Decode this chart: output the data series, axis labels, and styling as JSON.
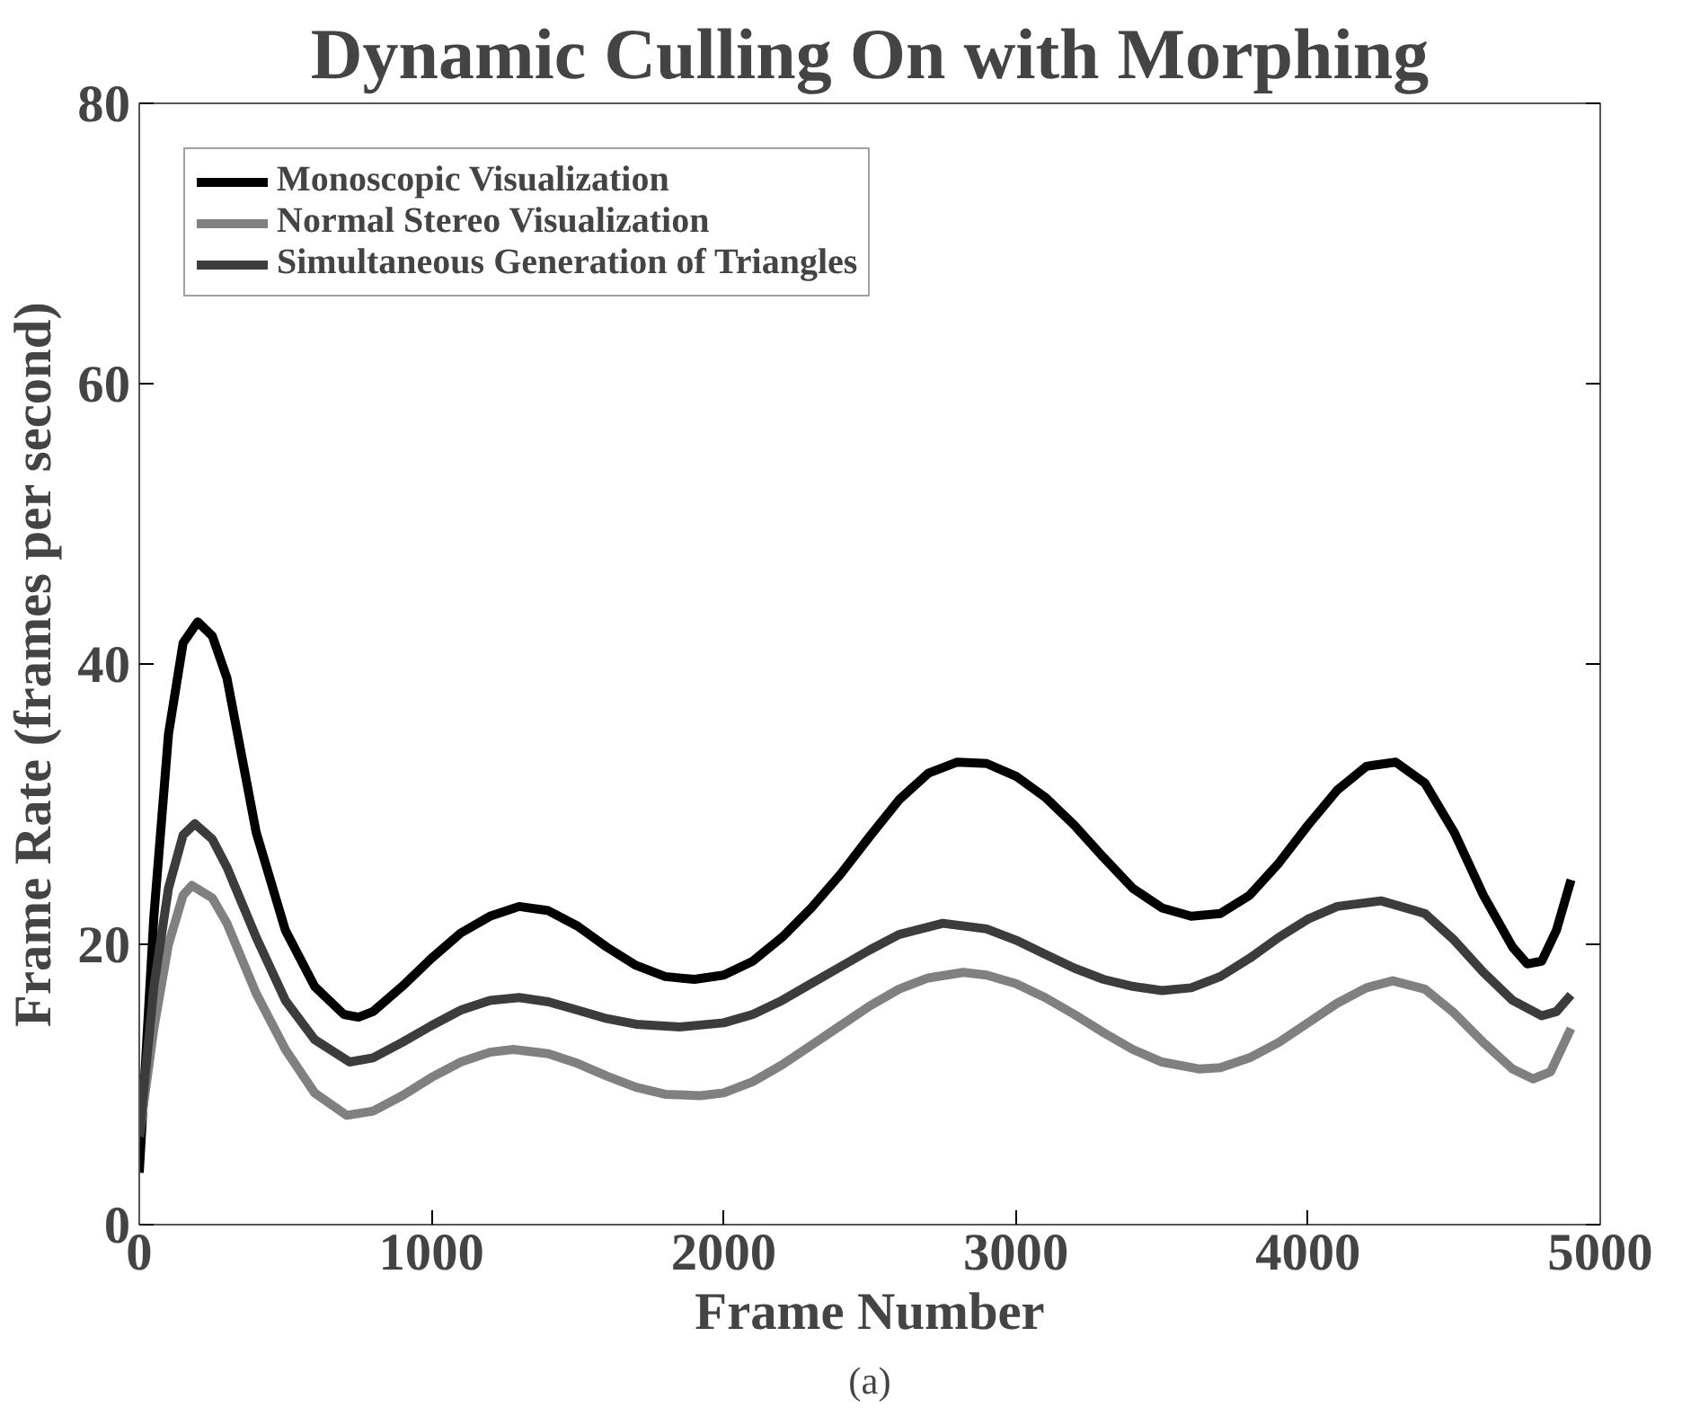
{
  "chart_data": {
    "type": "line",
    "title": "Dynamic Culling On with Morphing",
    "xlabel": "Frame Number",
    "ylabel": "Frame Rate (frames per second)",
    "annotations": [
      "(a)"
    ],
    "xlim": [
      0,
      5000
    ],
    "xticks": [
      0,
      1000,
      2000,
      3000,
      4000,
      5000
    ],
    "ylim": [
      0,
      80
    ],
    "yticks": [
      0,
      20,
      40,
      60,
      80
    ],
    "grid": false,
    "legend": "top left",
    "marker": "none",
    "line_style": "solid",
    "series": [
      {
        "name": "Monoscopic Visualization",
        "color": "#000000",
        "x": [
          0,
          50,
          100,
          150,
          200,
          250,
          300,
          400,
          500,
          600,
          700,
          750,
          800,
          900,
          1000,
          1100,
          1200,
          1300,
          1400,
          1500,
          1600,
          1700,
          1800,
          1900,
          2000,
          2100,
          2200,
          2300,
          2400,
          2500,
          2600,
          2700,
          2800,
          2900,
          3000,
          3100,
          3200,
          3300,
          3400,
          3500,
          3600,
          3700,
          3800,
          3900,
          4000,
          4100,
          4200,
          4300,
          4400,
          4500,
          4600,
          4700,
          4750,
          4800,
          4850,
          4900
        ],
        "values": [
          3.7,
          22,
          35,
          41.5,
          43,
          42,
          39,
          28,
          21,
          17,
          15,
          14.8,
          15.2,
          17,
          19,
          20.8,
          22,
          22.7,
          22.4,
          21.3,
          19.8,
          18.5,
          17.7,
          17.5,
          17.8,
          18.8,
          20.5,
          22.6,
          25,
          27.7,
          30.3,
          32.2,
          33,
          32.9,
          32,
          30.5,
          28.5,
          26.2,
          24,
          22.6,
          22,
          22.2,
          23.5,
          25.8,
          28.5,
          31,
          32.7,
          33,
          31.5,
          28,
          23.5,
          19.8,
          18.6,
          18.8,
          21,
          24.6
        ]
      },
      {
        "name": "Normal Stereo Visualization",
        "color": "#808080",
        "x": [
          0,
          50,
          100,
          150,
          180,
          250,
          300,
          400,
          500,
          600,
          710,
          800,
          900,
          1000,
          1100,
          1200,
          1280,
          1400,
          1500,
          1600,
          1700,
          1800,
          1920,
          2000,
          2100,
          2200,
          2300,
          2400,
          2500,
          2600,
          2700,
          2820,
          2900,
          3000,
          3100,
          3200,
          3300,
          3400,
          3500,
          3630,
          3700,
          3800,
          3900,
          4000,
          4100,
          4200,
          4290,
          4400,
          4500,
          4600,
          4700,
          4770,
          4830,
          4900
        ],
        "values": [
          6.3,
          14,
          20,
          23.5,
          24.2,
          23.3,
          21.5,
          16.5,
          12.5,
          9.4,
          7.8,
          8.1,
          9.2,
          10.5,
          11.6,
          12.3,
          12.5,
          12.2,
          11.5,
          10.6,
          9.8,
          9.3,
          9.2,
          9.4,
          10.2,
          11.4,
          12.8,
          14.2,
          15.6,
          16.8,
          17.6,
          18,
          17.8,
          17.2,
          16.2,
          15,
          13.7,
          12.5,
          11.6,
          11.1,
          11.2,
          11.9,
          13,
          14.4,
          15.8,
          16.9,
          17.4,
          16.8,
          15.1,
          13,
          11.1,
          10.4,
          10.9,
          14
        ]
      },
      {
        "name": "Simultaneous Generation of Triangles",
        "color": "#3c3c3c",
        "x": [
          0,
          50,
          100,
          150,
          190,
          250,
          300,
          400,
          500,
          600,
          720,
          800,
          900,
          1000,
          1100,
          1200,
          1300,
          1400,
          1500,
          1600,
          1700,
          1850,
          2000,
          2100,
          2200,
          2300,
          2400,
          2500,
          2600,
          2750,
          2900,
          3000,
          3100,
          3200,
          3300,
          3400,
          3500,
          3600,
          3700,
          3800,
          3900,
          4000,
          4100,
          4250,
          4400,
          4500,
          4600,
          4700,
          4800,
          4850,
          4900
        ],
        "values": [
          6.3,
          17,
          24,
          27.8,
          28.6,
          27.5,
          25.5,
          20.5,
          16,
          13.2,
          11.6,
          11.9,
          13,
          14.2,
          15.3,
          16,
          16.2,
          15.9,
          15.3,
          14.7,
          14.3,
          14.1,
          14.4,
          15,
          16,
          17.2,
          18.4,
          19.6,
          20.7,
          21.5,
          21.1,
          20.3,
          19.3,
          18.3,
          17.5,
          17,
          16.7,
          16.9,
          17.7,
          19,
          20.5,
          21.8,
          22.7,
          23.1,
          22.2,
          20.3,
          18,
          16,
          14.9,
          15.2,
          16.4
        ]
      }
    ]
  }
}
